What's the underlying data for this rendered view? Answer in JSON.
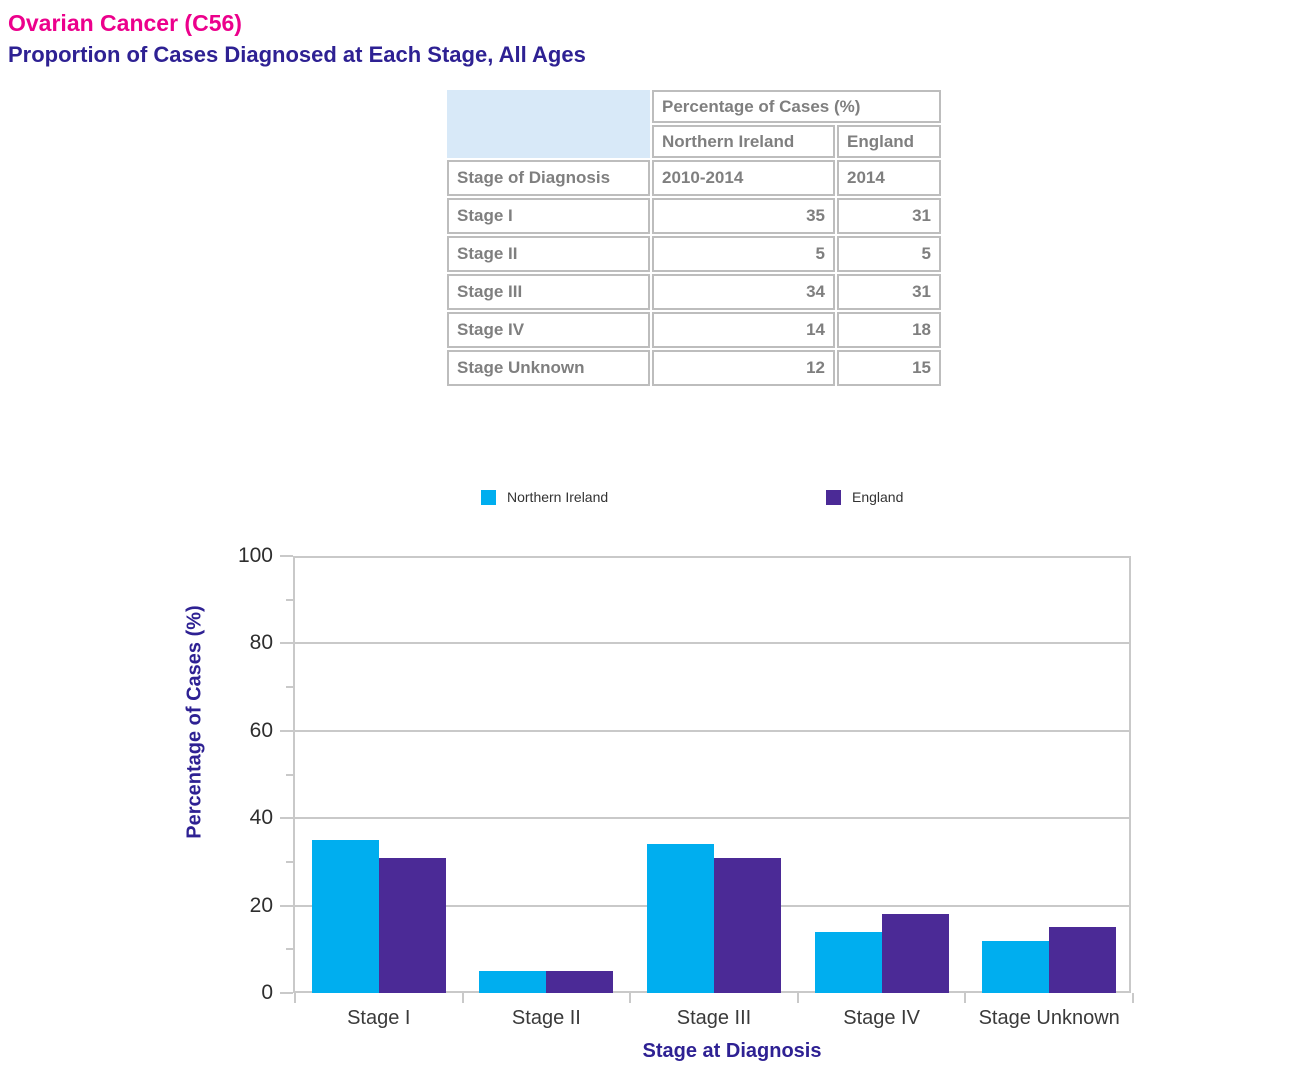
{
  "page": {
    "title": "Ovarian Cancer (C56)",
    "subtitle": "Proportion of Cases Diagnosed at Each Stage, All Ages"
  },
  "table": {
    "header": {
      "group_label": "Percentage of Cases (%)",
      "col1_region": "Northern Ireland",
      "col2_region": "England",
      "row_label": "Stage of Diagnosis",
      "col1_period": "2010-2014",
      "col2_period": "2014"
    },
    "rows": [
      {
        "stage": "Stage I",
        "northern_ireland": 35,
        "england": 31
      },
      {
        "stage": "Stage II",
        "northern_ireland": 5,
        "england": 5
      },
      {
        "stage": "Stage III",
        "northern_ireland": 34,
        "england": 31
      },
      {
        "stage": "Stage IV",
        "northern_ireland": 14,
        "england": 18
      },
      {
        "stage": "Stage Unknown",
        "northern_ireland": 12,
        "england": 15
      }
    ]
  },
  "chart_data": {
    "type": "bar",
    "categories": [
      "Stage I",
      "Stage II",
      "Stage III",
      "Stage IV",
      "Stage Unknown"
    ],
    "series": [
      {
        "name": "Northern Ireland",
        "color": "#00AEEF",
        "values": [
          35,
          5,
          34,
          14,
          12
        ]
      },
      {
        "name": "England",
        "color": "#4B2A96",
        "values": [
          31,
          5,
          31,
          18,
          15
        ]
      }
    ],
    "xlabel": "Stage at Diagnosis",
    "ylabel": "Percentage of Cases (%)",
    "ylim": [
      0,
      100
    ],
    "yticks_major": [
      0,
      20,
      40,
      60,
      80,
      100
    ],
    "yticks_minor": [
      10,
      30,
      50,
      70,
      90
    ],
    "grid": true,
    "legend_position": "top"
  },
  "colors": {
    "title_pink": "#EC008C",
    "axis_title_indigo": "#2E2193",
    "northern_ireland_bar": "#00AEEF",
    "england_bar": "#4B2A96",
    "table_border": "#BDBDBD",
    "table_text": "#7F7F7F",
    "table_corner_blue": "#D8E9F8",
    "gridline": "#C9C9C9"
  }
}
